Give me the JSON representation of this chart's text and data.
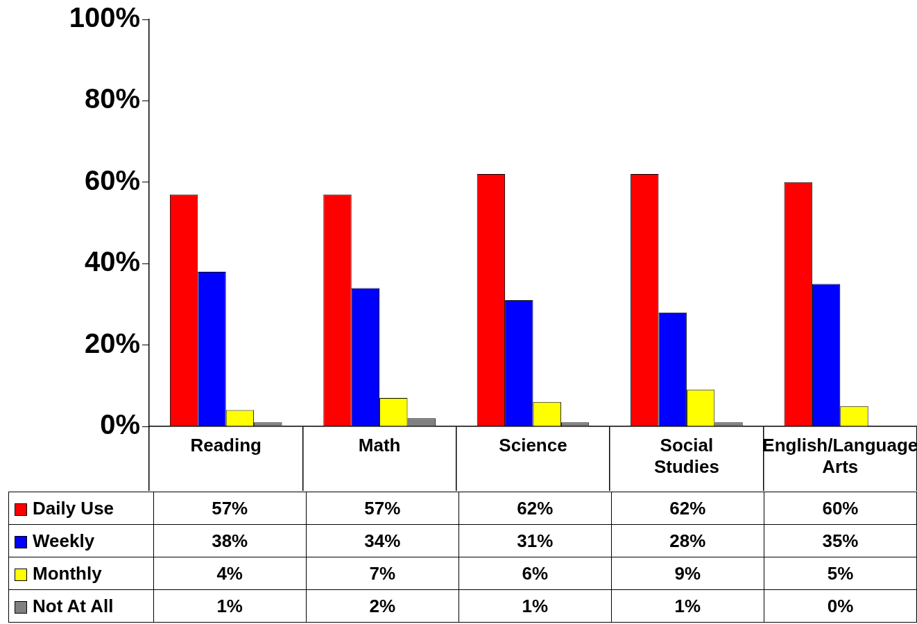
{
  "chart_data": {
    "type": "bar",
    "categories": [
      "Reading",
      "Math",
      "Science",
      "Social Studies",
      "English/Language Arts"
    ],
    "series": [
      {
        "name": "Daily Use",
        "color": "#ff0000",
        "values": [
          57,
          57,
          62,
          62,
          60
        ],
        "value_labels": [
          "57%",
          "57%",
          "62%",
          "62%",
          "60%"
        ]
      },
      {
        "name": "Weekly",
        "color": "#0000ff",
        "values": [
          38,
          34,
          31,
          28,
          35
        ],
        "value_labels": [
          "38%",
          "34%",
          "31%",
          "28%",
          "35%"
        ]
      },
      {
        "name": "Monthly",
        "color": "#ffff00",
        "values": [
          4,
          7,
          6,
          9,
          5
        ],
        "value_labels": [
          "4%",
          "7%",
          "6%",
          "9%",
          "5%"
        ]
      },
      {
        "name": "Not At All",
        "color": "#808080",
        "values": [
          1,
          2,
          1,
          1,
          0
        ],
        "value_labels": [
          "1%",
          "2%",
          "1%",
          "1%",
          "0%"
        ]
      }
    ],
    "ylim": [
      0,
      100
    ],
    "yticks": [
      {
        "value": 0,
        "label": "0%"
      },
      {
        "value": 20,
        "label": "20%"
      },
      {
        "value": 40,
        "label": "40%"
      },
      {
        "value": 60,
        "label": "60%"
      },
      {
        "value": 80,
        "label": "80%"
      },
      {
        "value": 100,
        "label": "100%"
      }
    ],
    "grid": false,
    "legend": "bottom"
  }
}
